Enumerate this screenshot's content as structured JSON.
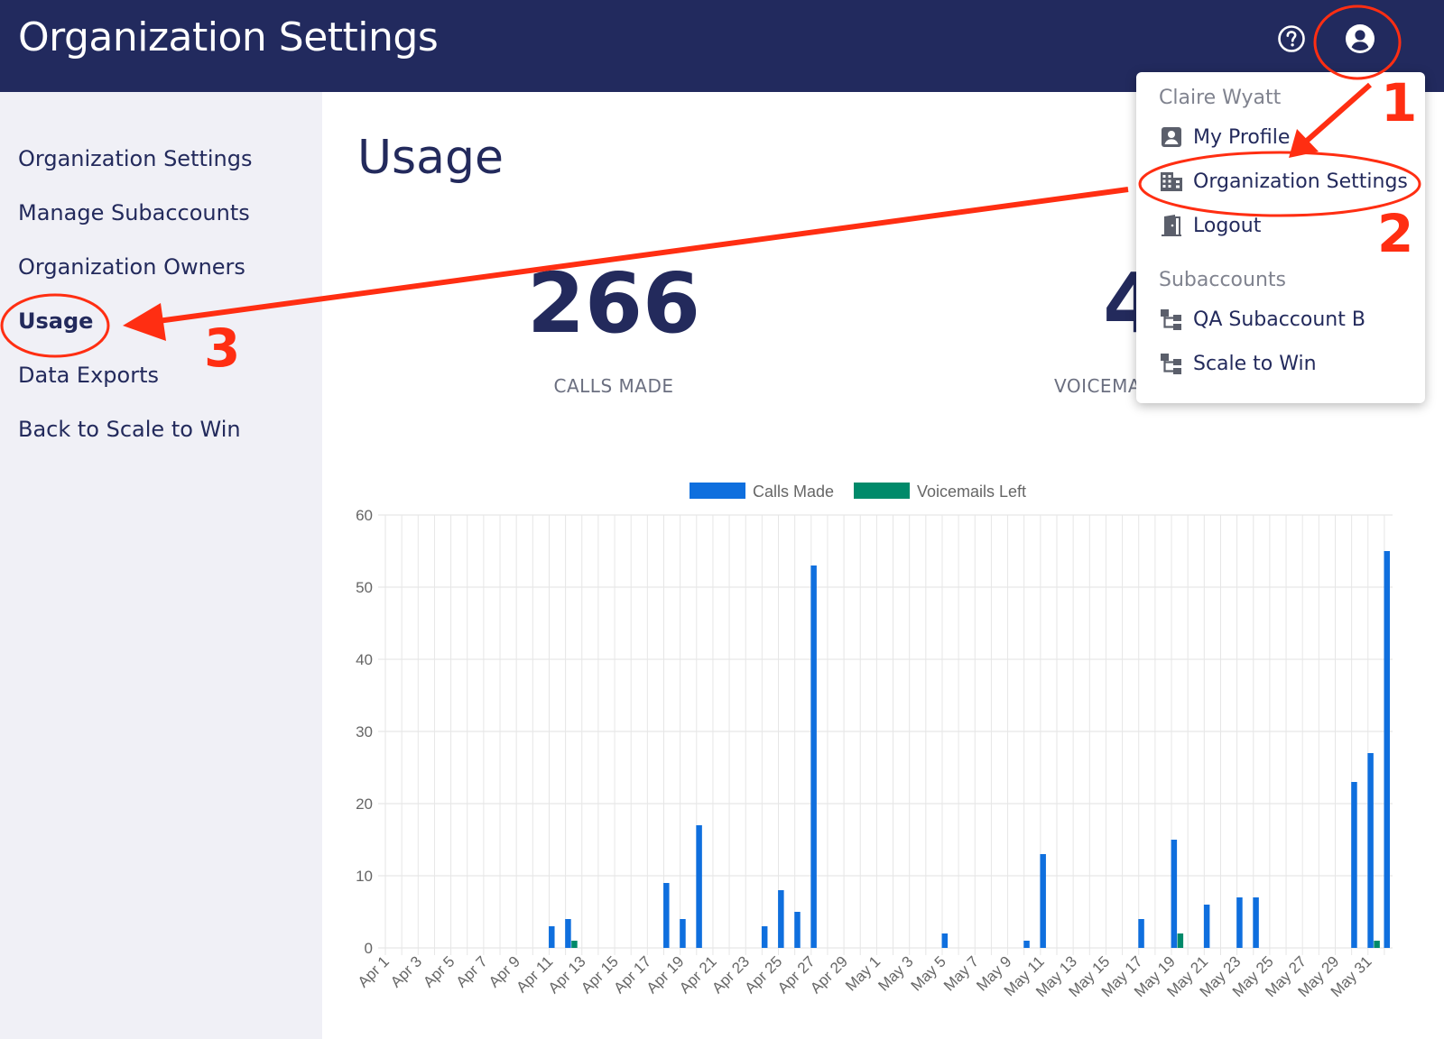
{
  "header": {
    "title": "Organization Settings"
  },
  "icons": {
    "help": "help-circle-icon",
    "account": "account-circle-icon"
  },
  "sidebar": {
    "items": [
      {
        "label": "Organization Settings"
      },
      {
        "label": "Manage Subaccounts"
      },
      {
        "label": "Organization Owners"
      },
      {
        "label": "Usage"
      },
      {
        "label": "Data Exports"
      },
      {
        "label": "Back to Scale to Win"
      }
    ]
  },
  "main": {
    "title": "Usage",
    "stats": [
      {
        "value": "266",
        "label": "CALLS MADE"
      },
      {
        "value": "4",
        "label": "VOICEMA"
      }
    ]
  },
  "dropdown": {
    "user_name": "Claire Wyatt",
    "items": [
      {
        "label": "My Profile",
        "icon": "profile-card-icon"
      },
      {
        "label": "Organization Settings",
        "icon": "building-icon"
      },
      {
        "label": "Logout",
        "icon": "door-exit-icon"
      }
    ],
    "subaccounts_heading": "Subaccounts",
    "subaccounts": [
      {
        "label": "QA Subaccount B",
        "icon": "hierarchy-icon"
      },
      {
        "label": "Scale to Win",
        "icon": "hierarchy-icon"
      }
    ]
  },
  "annotations": {
    "steps": [
      "1",
      "2",
      "3"
    ],
    "color": "#ff2e12"
  },
  "chart_data": {
    "type": "bar",
    "title": "",
    "xlabel": "",
    "ylabel": "",
    "ylim": [
      0,
      60
    ],
    "yticks": [
      0,
      10,
      20,
      30,
      40,
      50,
      60
    ],
    "legend_position": "top-center",
    "grid": true,
    "categories": [
      "Apr 1",
      "Apr 2",
      "Apr 3",
      "Apr 4",
      "Apr 5",
      "Apr 6",
      "Apr 7",
      "Apr 8",
      "Apr 9",
      "Apr 10",
      "Apr 11",
      "Apr 12",
      "Apr 13",
      "Apr 14",
      "Apr 15",
      "Apr 16",
      "Apr 17",
      "Apr 18",
      "Apr 19",
      "Apr 20",
      "Apr 21",
      "Apr 22",
      "Apr 23",
      "Apr 24",
      "Apr 25",
      "Apr 26",
      "Apr 27",
      "Apr 28",
      "Apr 29",
      "Apr 30",
      "May 1",
      "May 2",
      "May 3",
      "May 4",
      "May 5",
      "May 6",
      "May 7",
      "May 8",
      "May 9",
      "May 10",
      "May 11",
      "May 12",
      "May 13",
      "May 14",
      "May 15",
      "May 16",
      "May 17",
      "May 18",
      "May 19",
      "May 20",
      "May 21",
      "May 22",
      "May 23",
      "May 24",
      "May 25",
      "May 26",
      "May 27",
      "May 28",
      "May 29",
      "May 30",
      "May 31",
      "Jun 1"
    ],
    "tick_labels": [
      "Apr 1",
      "Apr 3",
      "Apr 5",
      "Apr 7",
      "Apr 9",
      "Apr 11",
      "Apr 13",
      "Apr 15",
      "Apr 17",
      "Apr 19",
      "Apr 21",
      "Apr 23",
      "Apr 25",
      "Apr 27",
      "Apr 29",
      "May 1",
      "May 3",
      "May 5",
      "May 7",
      "May 9",
      "May 11",
      "May 13",
      "May 15",
      "May 17",
      "May 19",
      "May 21",
      "May 23",
      "May 25",
      "May 27",
      "May 29",
      "May 31"
    ],
    "series": [
      {
        "name": "Calls Made",
        "color": "#0f6fde",
        "values": [
          0,
          0,
          0,
          0,
          0,
          0,
          0,
          0,
          0,
          0,
          3,
          4,
          0,
          0,
          0,
          0,
          0,
          9,
          4,
          17,
          0,
          0,
          0,
          3,
          8,
          5,
          53,
          0,
          0,
          0,
          0,
          0,
          0,
          0,
          2,
          0,
          0,
          0,
          0,
          1,
          13,
          0,
          0,
          0,
          0,
          0,
          4,
          0,
          15,
          0,
          6,
          0,
          7,
          7,
          0,
          0,
          0,
          0,
          0,
          23,
          27,
          55
        ]
      },
      {
        "name": "Voicemails Left",
        "color": "#008a6a",
        "values": [
          0,
          0,
          0,
          0,
          0,
          0,
          0,
          0,
          0,
          0,
          0,
          1,
          0,
          0,
          0,
          0,
          0,
          0,
          0,
          0,
          0,
          0,
          0,
          0,
          0,
          0,
          0,
          0,
          0,
          0,
          0,
          0,
          0,
          0,
          0,
          0,
          0,
          0,
          0,
          0,
          0,
          0,
          0,
          0,
          0,
          0,
          0,
          0,
          2,
          0,
          0,
          0,
          0,
          0,
          0,
          0,
          0,
          0,
          0,
          0,
          1,
          0
        ]
      }
    ]
  }
}
